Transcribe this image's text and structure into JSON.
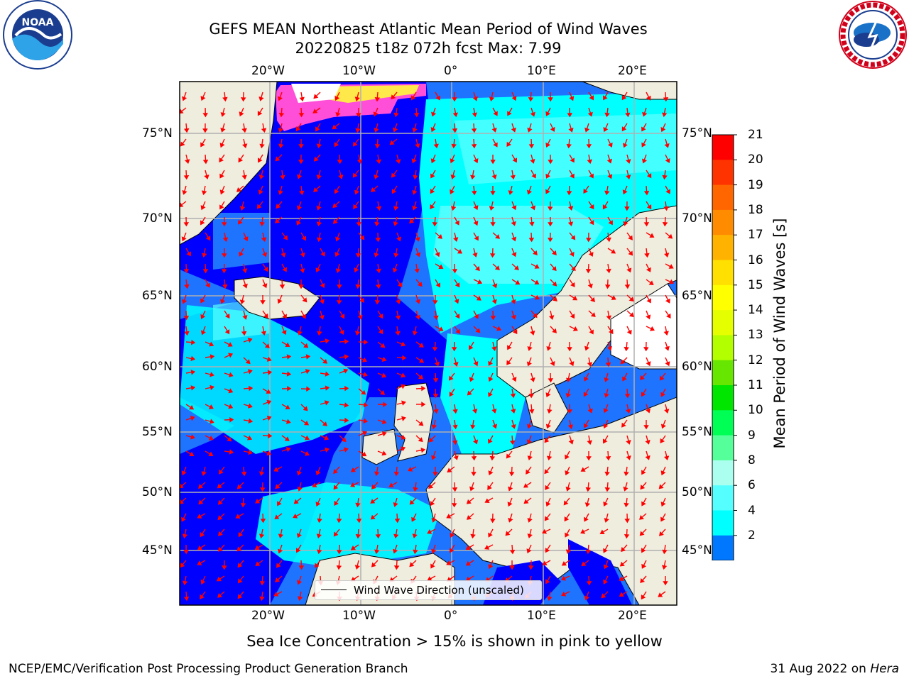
{
  "header": {
    "title_line1": "GEFS MEAN Northeast Atlantic Mean Period of Wind Waves",
    "title_line2": "20220825 t18z 072h fcst   Max: 7.99"
  },
  "logos": {
    "noaa_text": "NOAA",
    "noaa_ring_text": "NATIONAL OCEANIC AND ATMOSPHERIC ADMINISTRATION · U.S. DEPARTMENT OF COMMERCE",
    "nws_ring_text": "NATIONAL WEATHER SERVICE"
  },
  "map": {
    "lon_labels": [
      "20°W",
      "10°W",
      "0°",
      "10°E",
      "20°E"
    ],
    "lat_labels": [
      "75°N",
      "70°N",
      "65°N",
      "60°N",
      "55°N",
      "50°N",
      "45°N"
    ],
    "legend_label": "Wind Wave Direction (unscaled)",
    "colors": {
      "land": "#efedde",
      "ice_free_land": "#ffffff",
      "grid": "#b0b0b0",
      "arrow": "#ff0000",
      "sea_ice_pink": "#ff4fd8",
      "sea_ice_yellow": "#ffe94a"
    }
  },
  "colorbar": {
    "label": "Mean Period of Wind Waves [s]",
    "ticks": [
      "21",
      "20",
      "19",
      "18",
      "17",
      "16",
      "15",
      "14",
      "13",
      "12",
      "11",
      "10",
      "9",
      "8",
      "6",
      "4",
      "2"
    ],
    "colors": [
      "#ff0000",
      "#ff3300",
      "#ff6600",
      "#ff8c00",
      "#ffb300",
      "#ffe000",
      "#ffff00",
      "#e6ff00",
      "#b3ff00",
      "#66e600",
      "#00e600",
      "#00ff55",
      "#55ff99",
      "#aaffee",
      "#55ffff",
      "#00ffff",
      "#0077ff"
    ],
    "extend_color": "#0000ff"
  },
  "footer": {
    "note": "Sea Ice Concentration > 15% is shown in pink to yellow",
    "left": "NCEP/EMC/Verification Post Processing Product Generation Branch",
    "right_prefix": "31 Aug 2022 on ",
    "right_machine": "Hera"
  }
}
